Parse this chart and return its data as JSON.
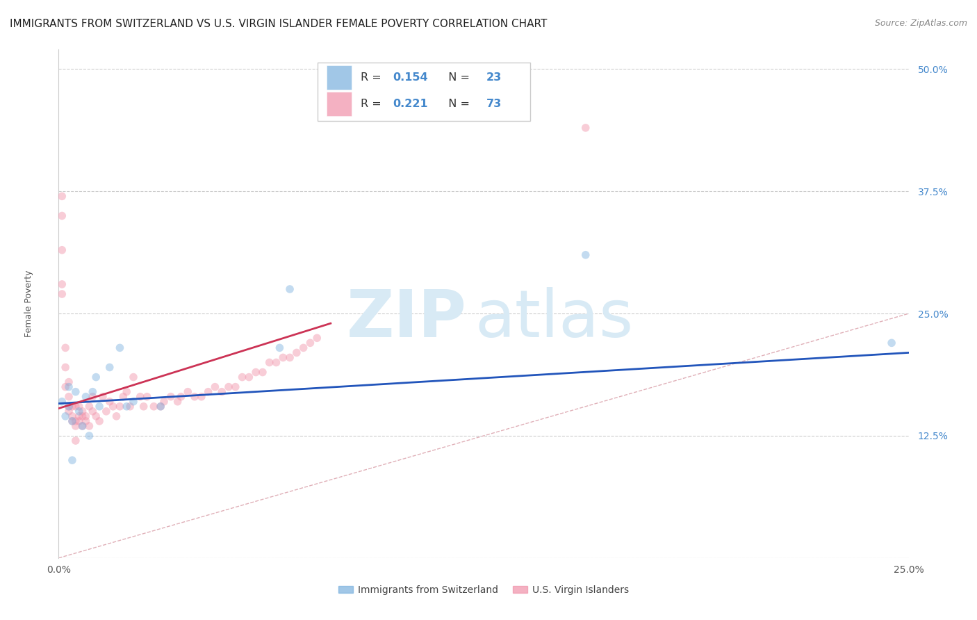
{
  "title": "IMMIGRANTS FROM SWITZERLAND VS U.S. VIRGIN ISLANDER FEMALE POVERTY CORRELATION CHART",
  "source": "Source: ZipAtlas.com",
  "ylabel": "Female Poverty",
  "xlim": [
    0.0,
    0.25
  ],
  "ylim": [
    0.0,
    0.52
  ],
  "yticks": [
    0.0,
    0.125,
    0.25,
    0.375,
    0.5
  ],
  "ytick_labels": [
    "",
    "12.5%",
    "25.0%",
    "37.5%",
    "50.0%"
  ],
  "xticks": [
    0.0,
    0.05,
    0.1,
    0.15,
    0.2,
    0.25
  ],
  "xtick_labels": [
    "0.0%",
    "",
    "",
    "",
    "",
    "25.0%"
  ],
  "blue_scatter_x": [
    0.001,
    0.002,
    0.003,
    0.003,
    0.004,
    0.004,
    0.005,
    0.006,
    0.007,
    0.008,
    0.009,
    0.01,
    0.011,
    0.012,
    0.015,
    0.018,
    0.02,
    0.022,
    0.065,
    0.068,
    0.155,
    0.245,
    0.03
  ],
  "blue_scatter_y": [
    0.16,
    0.145,
    0.175,
    0.155,
    0.14,
    0.1,
    0.17,
    0.15,
    0.135,
    0.165,
    0.125,
    0.17,
    0.185,
    0.155,
    0.195,
    0.215,
    0.155,
    0.16,
    0.215,
    0.275,
    0.31,
    0.22,
    0.155
  ],
  "pink_scatter_x": [
    0.001,
    0.001,
    0.001,
    0.001,
    0.001,
    0.002,
    0.002,
    0.002,
    0.003,
    0.003,
    0.003,
    0.003,
    0.004,
    0.004,
    0.004,
    0.005,
    0.005,
    0.005,
    0.005,
    0.006,
    0.006,
    0.006,
    0.007,
    0.007,
    0.007,
    0.008,
    0.008,
    0.009,
    0.009,
    0.01,
    0.01,
    0.011,
    0.012,
    0.013,
    0.014,
    0.015,
    0.016,
    0.017,
    0.018,
    0.019,
    0.02,
    0.021,
    0.022,
    0.024,
    0.025,
    0.026,
    0.028,
    0.03,
    0.031,
    0.033,
    0.035,
    0.036,
    0.038,
    0.04,
    0.042,
    0.044,
    0.046,
    0.048,
    0.05,
    0.052,
    0.054,
    0.056,
    0.058,
    0.06,
    0.062,
    0.064,
    0.066,
    0.068,
    0.07,
    0.072,
    0.074,
    0.076,
    0.155
  ],
  "pink_scatter_y": [
    0.28,
    0.37,
    0.35,
    0.315,
    0.27,
    0.195,
    0.215,
    0.175,
    0.165,
    0.18,
    0.155,
    0.15,
    0.155,
    0.145,
    0.14,
    0.155,
    0.14,
    0.135,
    0.12,
    0.14,
    0.155,
    0.145,
    0.145,
    0.135,
    0.15,
    0.145,
    0.14,
    0.135,
    0.155,
    0.15,
    0.165,
    0.145,
    0.14,
    0.165,
    0.15,
    0.16,
    0.155,
    0.145,
    0.155,
    0.165,
    0.17,
    0.155,
    0.185,
    0.165,
    0.155,
    0.165,
    0.155,
    0.155,
    0.16,
    0.165,
    0.16,
    0.165,
    0.17,
    0.165,
    0.165,
    0.17,
    0.175,
    0.17,
    0.175,
    0.175,
    0.185,
    0.185,
    0.19,
    0.19,
    0.2,
    0.2,
    0.205,
    0.205,
    0.21,
    0.215,
    0.22,
    0.225,
    0.44
  ],
  "blue_line_x": [
    0.0,
    0.25
  ],
  "blue_line_y": [
    0.158,
    0.21
  ],
  "pink_line_x": [
    0.0,
    0.08
  ],
  "pink_line_y": [
    0.153,
    0.24
  ],
  "ref_line_color": "#e0b0b8",
  "ref_line_x": [
    0.0,
    0.5
  ],
  "ref_line_y": [
    0.0,
    0.5
  ],
  "background_color": "#ffffff",
  "grid_color": "#cccccc",
  "title_fontsize": 11,
  "axis_label_fontsize": 9,
  "tick_fontsize": 10,
  "right_tick_color": "#4488cc",
  "watermark_zip": "ZIP",
  "watermark_atlas": "atlas",
  "watermark_color": "#d8eaf5",
  "scatter_size": 70,
  "scatter_alpha": 0.45,
  "blue_color": "#7ab0de",
  "pink_color": "#f090a8",
  "blue_line_color": "#2255bb",
  "pink_line_color": "#cc3355"
}
